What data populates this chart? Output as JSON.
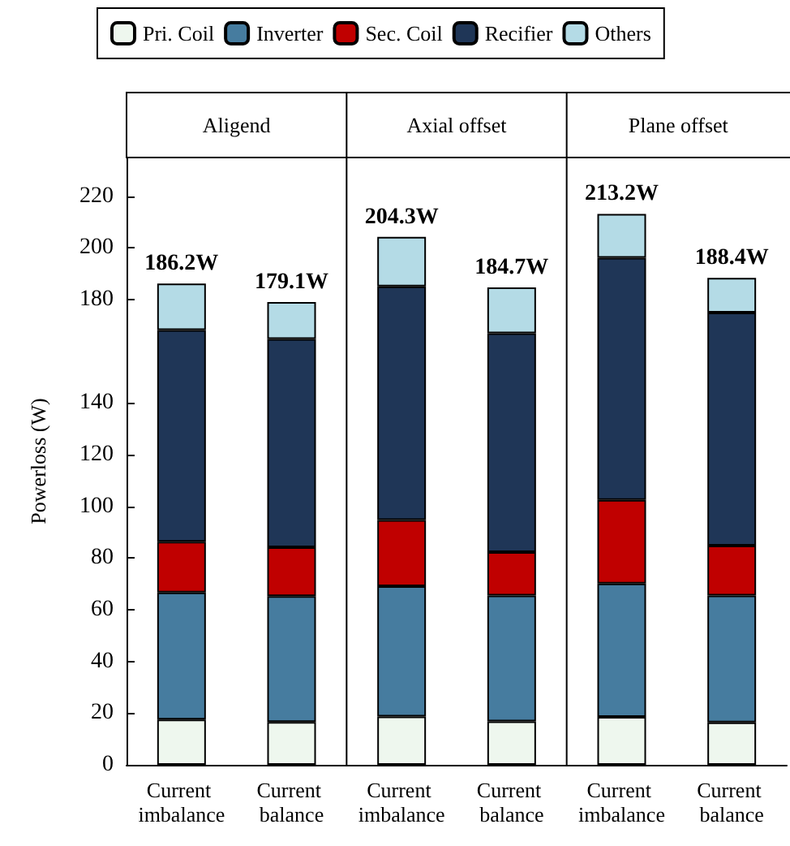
{
  "chart_data": {
    "type": "bar",
    "stacked": true,
    "ylabel": "Powerloss (W)",
    "categories": [
      "Current imbalance",
      "Current balance",
      "Current imbalance",
      "Current balance",
      "Current imbalance",
      "Current balance"
    ],
    "series": [
      {
        "name": "Pri. Coil",
        "color": "#eef7ee",
        "values": [
          17.5,
          16.6,
          18.7,
          16.8,
          18.5,
          16.4
        ]
      },
      {
        "name": "Inverter",
        "color": "#467c9f",
        "values": [
          49.2,
          48.7,
          50.4,
          48.7,
          51.6,
          49.1
        ]
      },
      {
        "name": "Sec. Coil",
        "color": "#c00000",
        "values": [
          19.6,
          18.9,
          25.6,
          16.8,
          32.4,
          19.3
        ]
      },
      {
        "name": "Recifier",
        "color": "#1f3657",
        "values": [
          81.9,
          80.6,
          90.4,
          84.7,
          93.7,
          90.2
        ]
      },
      {
        "name": "Others",
        "color": "#b4dbe6",
        "values": [
          18.0,
          14.3,
          19.2,
          17.7,
          17.0,
          13.4
        ]
      }
    ],
    "totals": [
      "186.2W",
      "179.1W",
      "204.3W",
      "184.7W",
      "213.2W",
      "188.4W"
    ],
    "annotations": [
      "Aligend",
      "Axial offset",
      "Plane offset"
    ],
    "ylim": [
      0,
      235
    ],
    "yticks": [
      0,
      20,
      40,
      60,
      80,
      100,
      120,
      140,
      180,
      200,
      220
    ],
    "legend": "top",
    "grid": false
  }
}
